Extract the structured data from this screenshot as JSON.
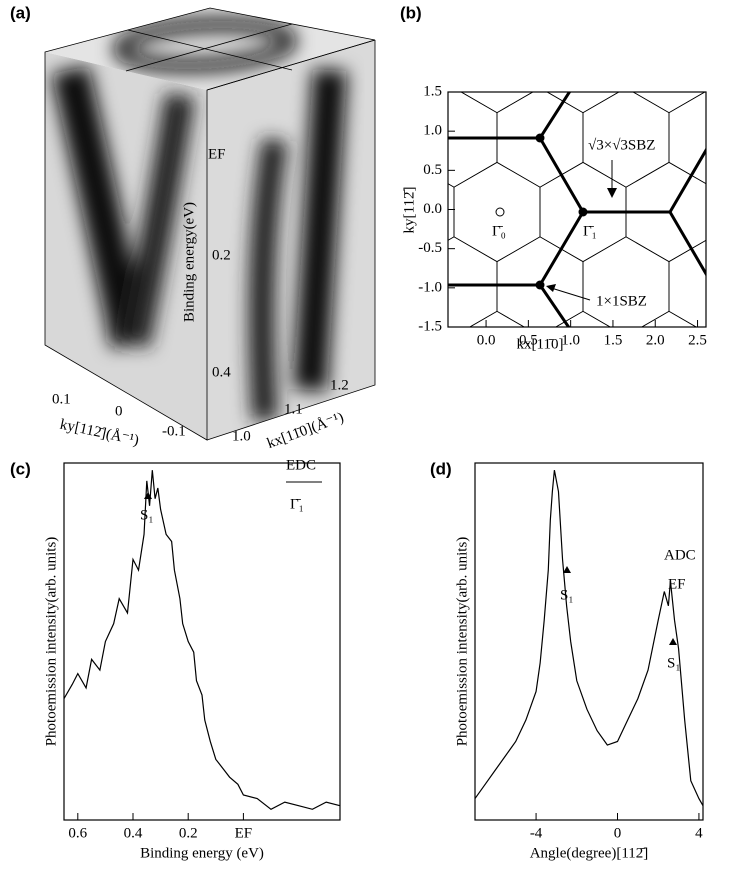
{
  "cube": {
    "panel": "(a)",
    "energy_ticks": [
      "EF",
      "0.2",
      "0.4"
    ],
    "energy_label": "Binding energy(eV)",
    "ky_ticks": [
      "0.1",
      "0",
      "-0.1"
    ],
    "ky_label": "ky[112̄](Å⁻¹)",
    "kx_ticks": [
      "1.0",
      "1.1",
      "1.2"
    ],
    "kx_label": "kx[11̄0](Å⁻¹)"
  },
  "chart_data": [
    {
      "type": "lattice",
      "panel": "(b)",
      "xlim": [
        -0.45,
        2.6
      ],
      "ylim": [
        -1.5,
        1.5
      ],
      "xticks": [
        {
          "value": 0,
          "label": "0.0"
        },
        0.5,
        {
          "value": 1,
          "label": "1.0"
        },
        1.5,
        {
          "value": 2,
          "label": "2.0"
        },
        2.5
      ],
      "yticks": [
        1.5,
        {
          "value": 1,
          "label": "1.0"
        },
        0.5,
        {
          "value": 0,
          "label": "0.0"
        },
        -0.5,
        {
          "value": -1,
          "label": "-1.0"
        },
        -1.5
      ],
      "xlabel": "kx[11̄0]",
      "ylabel": "ky[112̄]",
      "annotations": [
        "√3×√3SBZ",
        "Γ̄₀",
        "Γ̄₁",
        "1×1SBZ"
      ]
    },
    {
      "type": "line",
      "panel": "(c)",
      "color": "#000000",
      "x": [
        0.65,
        0.62,
        0.6,
        0.57,
        0.55,
        0.52,
        0.5,
        0.47,
        0.45,
        0.42,
        0.4,
        0.38,
        0.36,
        0.35,
        0.34,
        0.33,
        0.32,
        0.31,
        0.3,
        0.28,
        0.26,
        0.25,
        0.23,
        0.22,
        0.2,
        0.18,
        0.17,
        0.15,
        0.14,
        0.12,
        0.1,
        0.07,
        0.05,
        0.02,
        0,
        -0.05,
        -0.1,
        -0.15,
        -0.2,
        -0.25,
        -0.3,
        -0.35
      ],
      "values": [
        34,
        38,
        41,
        37,
        45,
        42,
        50,
        55,
        62,
        58,
        73,
        70,
        80,
        95,
        88,
        98,
        90,
        93,
        87,
        80,
        78,
        70,
        62,
        55,
        50,
        47,
        39,
        35,
        28,
        22,
        17,
        14,
        12,
        10,
        7,
        6,
        3,
        5,
        4,
        3,
        5,
        4
      ],
      "xlim": [
        0.65,
        -0.35
      ],
      "ylim": [
        0,
        100
      ],
      "xticks": [
        0.6,
        0.4,
        0.2,
        {
          "value": 0,
          "label": "EF"
        }
      ],
      "xlabel": "Binding energy (eV)",
      "ylabel": "Photoemission intensity(arb. units)",
      "annotations": [
        "EDC",
        "Γ̄₁",
        "S₁"
      ]
    },
    {
      "type": "line",
      "panel": "(d)",
      "color": "#000000",
      "x": [
        -7,
        -6.5,
        -6,
        -5.5,
        -5,
        -4.5,
        -4,
        -3.8,
        -3.6,
        -3.4,
        -3.3,
        -3.2,
        -3.1,
        -2.9,
        -2.7,
        -2.5,
        -2.3,
        -2,
        -1.5,
        -1,
        -0.5,
        0,
        0.5,
        1,
        1.5,
        2,
        2.3,
        2.5,
        2.6,
        2.8,
        3,
        3.3,
        3.6,
        4,
        4.2
      ],
      "values": [
        6,
        10,
        14,
        18,
        22,
        28,
        36,
        44,
        56,
        70,
        84,
        92,
        98,
        92,
        73,
        60,
        50,
        39,
        31,
        25,
        21,
        22,
        28,
        34,
        42,
        56,
        64,
        60,
        67,
        56,
        48,
        28,
        11,
        6,
        4
      ],
      "xlim": [
        -7,
        4.2
      ],
      "ylim": [
        0,
        100
      ],
      "xticks": [
        -4,
        0,
        4
      ],
      "xlabel": "Angle(degree)[112̄]",
      "ylabel": "Photoemission intensity(arb. units)",
      "annotations": [
        "ADC",
        "EF",
        "S₁",
        "S₁"
      ]
    }
  ]
}
